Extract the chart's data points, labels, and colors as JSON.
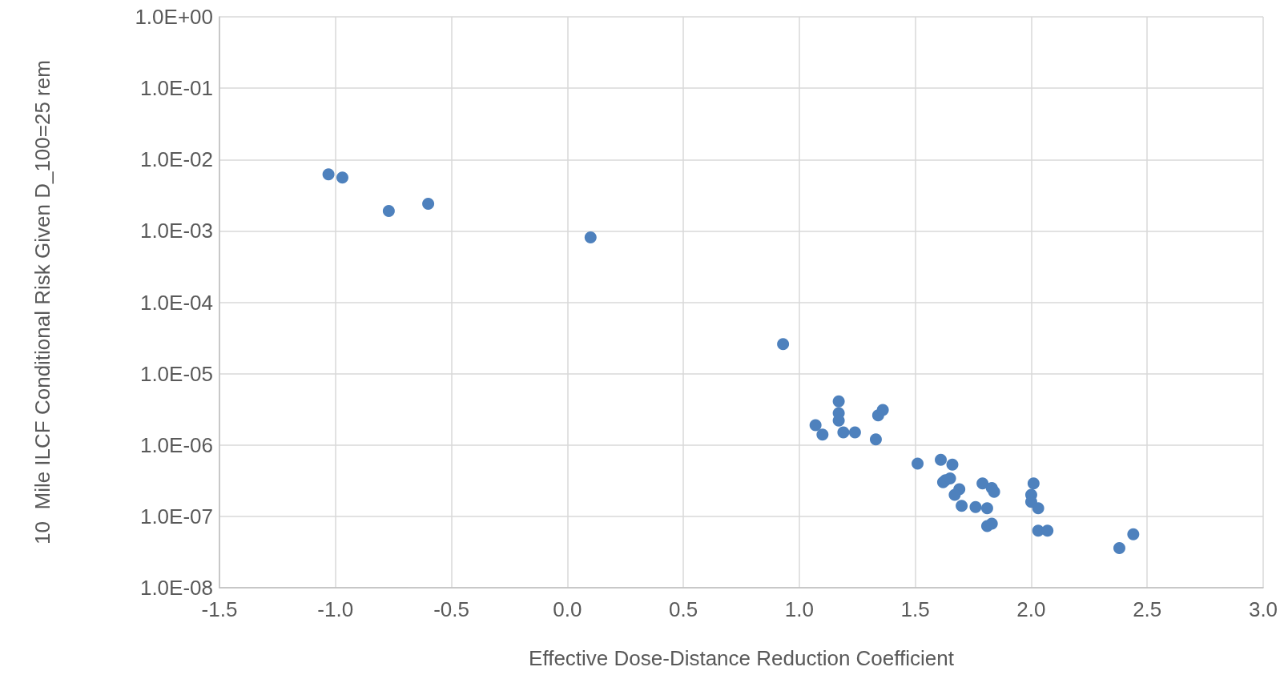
{
  "chart_data": {
    "type": "scatter",
    "xlabel": "Effective Dose-Distance Reduction Coefficient",
    "ylabel": "10  Mile ILCF Conditional Risk Given D_100=25 rem",
    "x": [
      -1.03,
      -0.97,
      -0.77,
      -0.6,
      0.1,
      0.93,
      1.17,
      1.17,
      1.17,
      1.07,
      1.1,
      1.19,
      1.24,
      1.33,
      1.34,
      1.36,
      1.51,
      1.61,
      1.66,
      1.62,
      1.63,
      1.65,
      1.69,
      1.67,
      1.7,
      1.76,
      1.81,
      1.79,
      1.83,
      1.84,
      1.81,
      1.83,
      2.01,
      2.0,
      2.0,
      2.03,
      2.03,
      2.07,
      2.38,
      2.44
    ],
    "series": [
      {
        "color": "#4e81bd",
        "values": [
          0.0062,
          0.0056,
          0.0019,
          0.0024,
          0.00081,
          2.6e-05,
          4.1e-06,
          2.8e-06,
          2.2e-06,
          1.9e-06,
          1.4e-06,
          1.5e-06,
          1.5e-06,
          1.2e-06,
          2.6e-06,
          3.1e-06,
          5.5e-07,
          6.2e-07,
          5.3e-07,
          3e-07,
          3.2e-07,
          3.4e-07,
          2.4e-07,
          2e-07,
          1.4e-07,
          1.35e-07,
          1.3e-07,
          2.9e-07,
          2.5e-07,
          2.2e-07,
          7.3e-08,
          7.9e-08,
          2.9e-07,
          2e-07,
          1.6e-07,
          1.3e-07,
          6.3e-08,
          6.3e-08,
          3.6e-08,
          5.6e-08
        ]
      }
    ],
    "xlim": [
      -1.5,
      3.0
    ],
    "xticks": [
      {
        "value": -1.5,
        "label": "-1.5"
      },
      {
        "value": -1,
        "label": "-1.0"
      },
      {
        "value": -0.5,
        "label": "-0.5"
      },
      {
        "value": 0,
        "label": "0.0"
      },
      {
        "value": 0.5,
        "label": "0.5"
      },
      {
        "value": 1,
        "label": "1.0"
      },
      {
        "value": 1.5,
        "label": "1.5"
      },
      {
        "value": 2,
        "label": "2.0"
      },
      {
        "value": 2.5,
        "label": "2.5"
      },
      {
        "value": 3,
        "label": "3.0"
      }
    ],
    "ylim": [
      1e-08,
      1
    ],
    "yticks": [
      {
        "value": 1e-08,
        "label": "1.0E-08"
      },
      {
        "value": 1e-07,
        "label": "1.0E-07"
      },
      {
        "value": 1e-06,
        "label": "1.0E-06"
      },
      {
        "value": 1e-05,
        "label": "1.0E-05"
      },
      {
        "value": 0.0001,
        "label": "1.0E-04"
      },
      {
        "value": 0.001,
        "label": "1.0E-03"
      },
      {
        "value": 0.01,
        "label": "1.0E-02"
      },
      {
        "value": 0.1,
        "label": "1.0E-01"
      },
      {
        "value": 1,
        "label": "1.0E+00"
      }
    ],
    "log": "y",
    "grid": true,
    "marker": "circle"
  }
}
